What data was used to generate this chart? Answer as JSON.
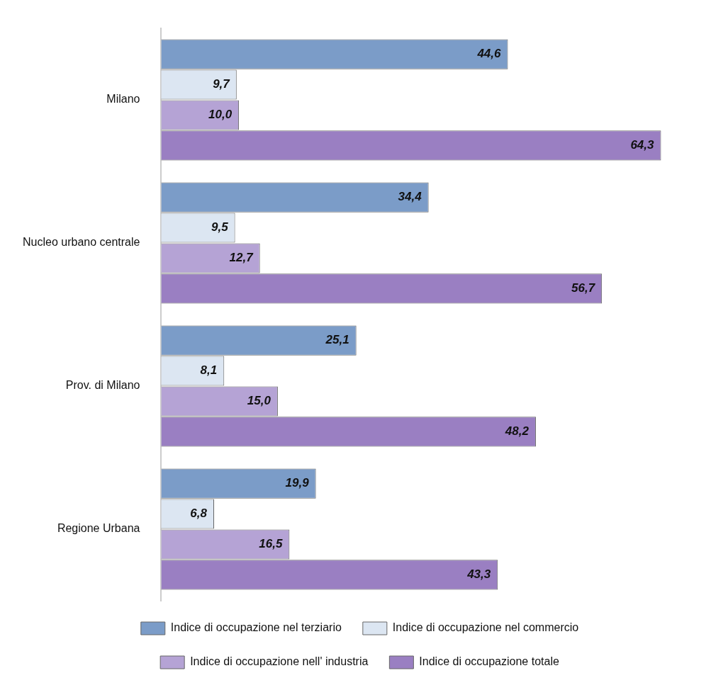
{
  "chart_data": {
    "type": "bar",
    "orientation": "horizontal",
    "categories": [
      "Milano",
      "Nucleo urbano centrale",
      "Prov. di Milano",
      "Regione Urbana"
    ],
    "series": [
      {
        "name": "Indice di occupazione nel terziario",
        "color": "#7b9cc8",
        "values": [
          44.6,
          34.4,
          25.1,
          19.9
        ],
        "value_labels": [
          "44,6",
          "34,4",
          "25,1",
          "19,9"
        ]
      },
      {
        "name": "Indice di occupazione nel commercio",
        "color": "#dce6f2",
        "values": [
          9.7,
          9.5,
          8.1,
          6.8
        ],
        "value_labels": [
          "9,7",
          "9,5",
          "8,1",
          "6,8"
        ]
      },
      {
        "name": "Indice di occupazione nell' industria",
        "color": "#b5a3d5",
        "values": [
          10.0,
          12.7,
          15.0,
          16.5
        ],
        "value_labels": [
          "10,0",
          "12,7",
          "15,0",
          "16,5"
        ]
      },
      {
        "name": "Indice di occupazione totale",
        "color": "#9a7fc2",
        "values": [
          64.3,
          56.7,
          48.2,
          43.3
        ],
        "value_labels": [
          "64,3",
          "56,7",
          "48,2",
          "43,3"
        ]
      }
    ],
    "grid": false,
    "legend": "bottom"
  }
}
